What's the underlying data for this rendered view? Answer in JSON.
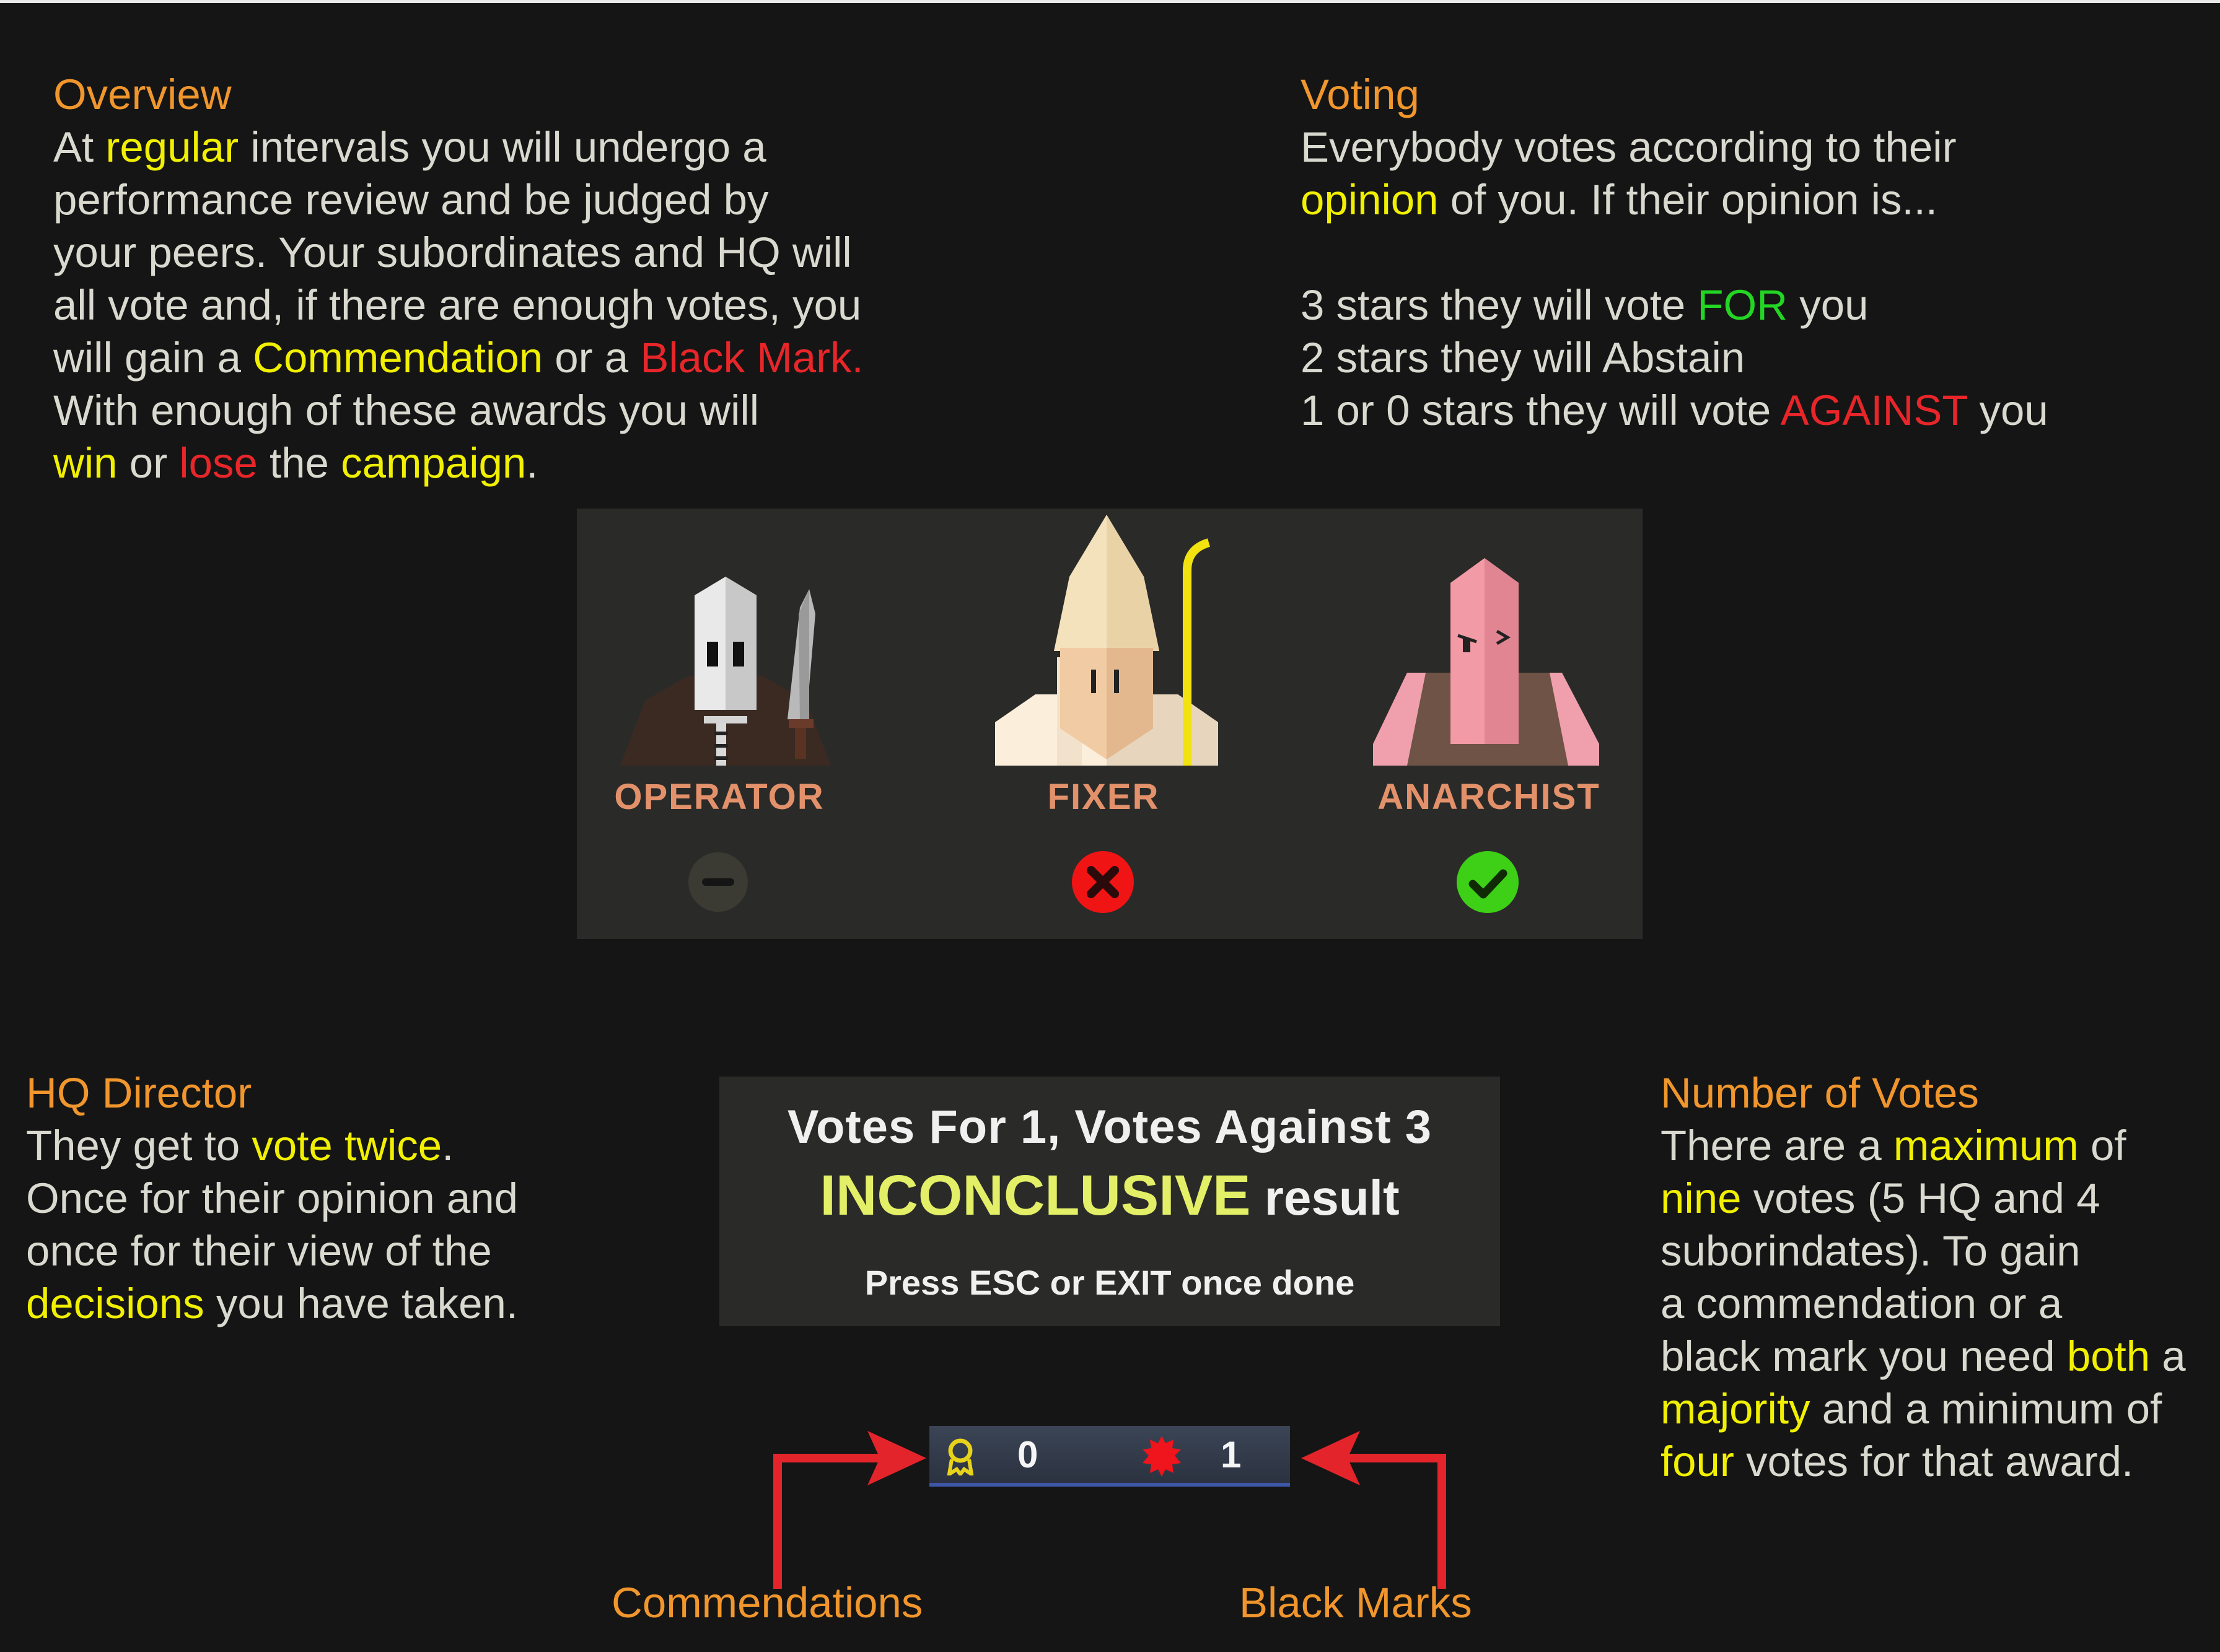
{
  "overview": {
    "heading": "Overview",
    "lines": [
      [
        {
          "t": "At "
        },
        {
          "t": "regular",
          "c": "y"
        },
        {
          "t": " intervals you will undergo a"
        }
      ],
      [
        {
          "t": "performance review and be judged by"
        }
      ],
      [
        {
          "t": "your peers. Your subordinates and HQ will"
        }
      ],
      [
        {
          "t": "all vote and, if there are enough votes, you"
        }
      ],
      [
        {
          "t": "will gain a "
        },
        {
          "t": "Commendation",
          "c": "y"
        },
        {
          "t": " or a "
        },
        {
          "t": "Black Mark.",
          "c": "r"
        }
      ],
      [
        {
          "t": "With enough of these awards you will"
        }
      ],
      [
        {
          "t": "win",
          "c": "y"
        },
        {
          "t": " or "
        },
        {
          "t": "lose",
          "c": "r"
        },
        {
          "t": " the "
        },
        {
          "t": "campaign",
          "c": "y"
        },
        {
          "t": "."
        }
      ]
    ]
  },
  "voting": {
    "heading": "Voting",
    "lines": [
      [
        {
          "t": "Everybody votes according to their"
        }
      ],
      [
        {
          "t": "opinion",
          "c": "y"
        },
        {
          "t": " of you. If their opinion is..."
        }
      ],
      [
        {
          "t": " "
        }
      ],
      [
        {
          "t": "3 stars they will vote "
        },
        {
          "t": "FOR",
          "c": "g"
        },
        {
          "t": " you"
        }
      ],
      [
        {
          "t": "2 stars they will Abstain"
        }
      ],
      [
        {
          "t": "1 or 0 stars they will vote "
        },
        {
          "t": "AGAINST",
          "c": "r"
        },
        {
          "t": " you"
        }
      ]
    ]
  },
  "characters": [
    {
      "name": "OPERATOR",
      "vote": "abstain-icon"
    },
    {
      "name": "FIXER",
      "vote": "against-icon"
    },
    {
      "name": "ANARCHIST",
      "vote": "for-icon"
    }
  ],
  "hq_director": {
    "heading": "HQ Director",
    "lines": [
      [
        {
          "t": "They get to "
        },
        {
          "t": "vote twice",
          "c": "y"
        },
        {
          "t": "."
        }
      ],
      [
        {
          "t": "Once for their opinion and"
        }
      ],
      [
        {
          "t": "once for their view of the"
        }
      ],
      [
        {
          "t": "decisions",
          "c": "y"
        },
        {
          "t": " you have taken."
        }
      ]
    ]
  },
  "number_of_votes": {
    "heading": "Number of Votes",
    "lines": [
      [
        {
          "t": "There are a "
        },
        {
          "t": "maximum",
          "c": "y"
        },
        {
          "t": " of"
        }
      ],
      [
        {
          "t": "nine",
          "c": "y"
        },
        {
          "t": " votes (5 HQ and 4"
        }
      ],
      [
        {
          "t": "suborindates). To gain"
        }
      ],
      [
        {
          "t": "a commendation or a"
        }
      ],
      [
        {
          "t": "black mark you need "
        },
        {
          "t": "both",
          "c": "y"
        },
        {
          "t": " a"
        }
      ],
      [
        {
          "t": "majority",
          "c": "y"
        },
        {
          "t": " and a minimum of"
        }
      ],
      [
        {
          "t": "four",
          "c": "y"
        },
        {
          "t": " votes for that award."
        }
      ]
    ]
  },
  "result": {
    "line1": "Votes For 1, Votes Against 3",
    "status": "INCONCLUSIVE",
    "status_suffix": " result",
    "line3": "Press ESC or EXIT once done"
  },
  "awards": {
    "commendations": "0",
    "black_marks": "1",
    "commendations_label": "Commendations",
    "black_marks_label": "Black Marks"
  },
  "colors": {
    "heading": "#f0962c",
    "highlight": "#f1f000",
    "negative": "#e8262a",
    "positive": "#23d623",
    "arrow": "#e3242b"
  }
}
